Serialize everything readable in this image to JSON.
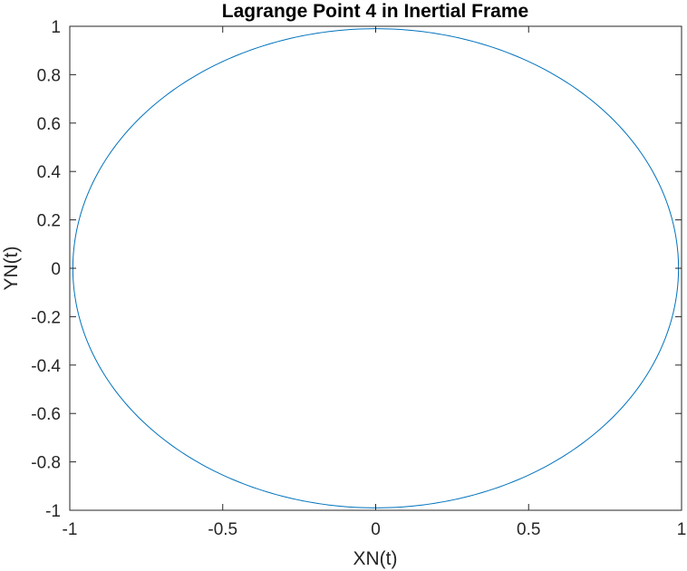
{
  "chart_data": {
    "type": "line",
    "title": "Lagrange Point 4 in Inertial Frame",
    "xlabel": "XN(t)",
    "ylabel": "YN(t)",
    "xlim": [
      -1,
      1
    ],
    "ylim": [
      -1,
      1
    ],
    "grid": false,
    "box": true,
    "x_ticks": [
      -1,
      -0.5,
      0,
      0.5,
      1
    ],
    "x_tick_labels": [
      "-1",
      "-0.5",
      "0",
      "0.5",
      "1"
    ],
    "y_ticks": [
      -1,
      -0.8,
      -0.6,
      -0.4,
      -0.2,
      0,
      0.2,
      0.4,
      0.6,
      0.8,
      1
    ],
    "y_tick_labels": [
      "-1",
      "-0.8",
      "-0.6",
      "-0.4",
      "-0.2",
      "0",
      "0.2",
      "0.4",
      "0.6",
      "0.8",
      "1"
    ],
    "series": [
      {
        "color": "#0072BD",
        "shape": "circle",
        "center": [
          0,
          0
        ],
        "radius": 0.99,
        "points": 361
      }
    ]
  }
}
